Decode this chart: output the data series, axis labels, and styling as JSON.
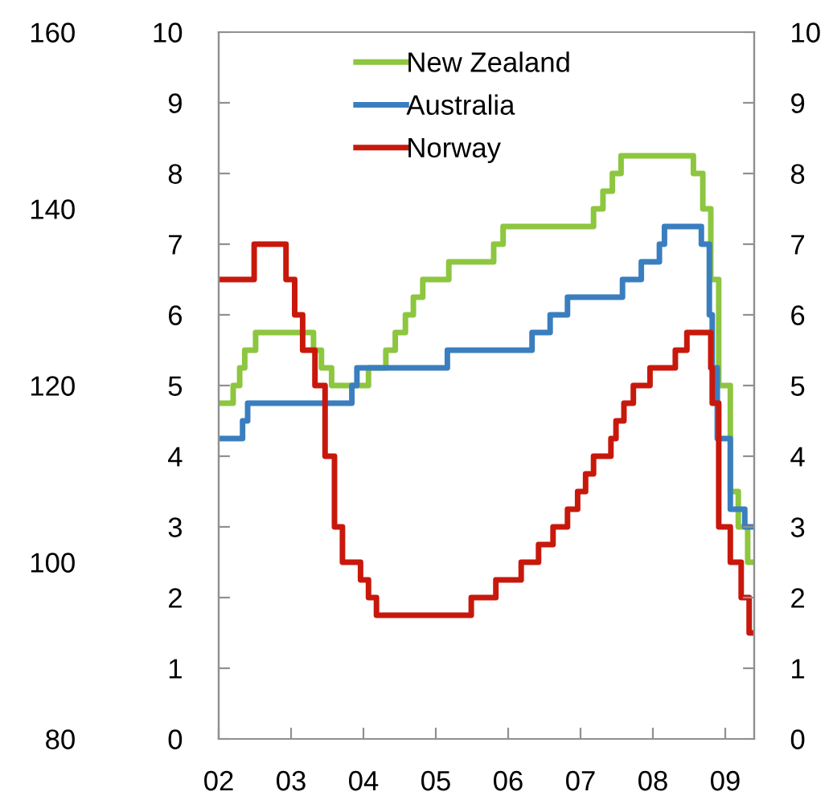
{
  "chart_data": {
    "type": "step",
    "xlim": [
      2002,
      2009.4
    ],
    "xticks": [
      {
        "value": 2002,
        "label": "02"
      },
      {
        "value": 2003,
        "label": "03"
      },
      {
        "value": 2004,
        "label": "04"
      },
      {
        "value": 2005,
        "label": "05"
      },
      {
        "value": 2006,
        "label": "06"
      },
      {
        "value": 2007,
        "label": "07"
      },
      {
        "value": 2008,
        "label": "08"
      },
      {
        "value": 2009,
        "label": "09"
      }
    ],
    "ylim": [
      0,
      10
    ],
    "yticks": [
      0,
      1,
      2,
      3,
      4,
      5,
      6,
      7,
      8,
      9,
      10
    ],
    "y2lim": [
      0,
      10
    ],
    "y2ticks": [
      0,
      1,
      2,
      3,
      4,
      5,
      6,
      7,
      8,
      9,
      10
    ],
    "y3lim": [
      80,
      160
    ],
    "y3ticks": [
      80,
      100,
      120,
      140,
      160
    ],
    "grid": false,
    "legend": "top left",
    "line_style": "solid",
    "marker": "none",
    "series": [
      {
        "name": "New Zealand",
        "color": "#8dc63f",
        "x": [
          2002,
          2002.2,
          2002.29,
          2002.36,
          2002.51,
          2003.31,
          2003.42,
          2003.56,
          2004.07,
          2004.31,
          2004.44,
          2004.58,
          2004.69,
          2004.82,
          2005.18,
          2005.8,
          2005.93,
          2007.18,
          2007.31,
          2007.44,
          2007.56,
          2008.56,
          2008.69,
          2008.8,
          2008.91,
          2009.07,
          2009.18,
          2009.31,
          2009.35
        ],
        "values": [
          4.75,
          5.0,
          5.25,
          5.5,
          5.75,
          5.5,
          5.25,
          5.0,
          5.25,
          5.5,
          5.75,
          6.0,
          6.25,
          6.5,
          6.75,
          7.0,
          7.25,
          7.5,
          7.75,
          8.0,
          8.25,
          8.0,
          7.5,
          6.5,
          5.0,
          3.5,
          3.0,
          2.5,
          2.5
        ]
      },
      {
        "name": "Australia",
        "color": "#3a7ebf",
        "x": [
          2002,
          2002.33,
          2002.4,
          2003.84,
          2003.91,
          2005.16,
          2006.33,
          2006.58,
          2006.82,
          2007.58,
          2007.84,
          2008.09,
          2008.16,
          2008.67,
          2008.78,
          2008.82,
          2008.89,
          2009.07,
          2009.27,
          2009.4
        ],
        "values": [
          4.25,
          4.5,
          4.75,
          5.0,
          5.25,
          5.5,
          5.75,
          6.0,
          6.25,
          6.5,
          6.75,
          7.0,
          7.25,
          7.0,
          6.0,
          5.25,
          4.25,
          3.25,
          3.0,
          3.0
        ]
      },
      {
        "name": "Norway",
        "color": "#c8180c",
        "x": [
          2002,
          2002.49,
          2002.93,
          2003.05,
          2003.16,
          2003.33,
          2003.47,
          2003.6,
          2003.71,
          2003.96,
          2004.07,
          2004.18,
          2005.49,
          2005.83,
          2006.18,
          2006.42,
          2006.62,
          2006.82,
          2006.96,
          2007.07,
          2007.18,
          2007.42,
          2007.49,
          2007.6,
          2007.73,
          2007.96,
          2008.31,
          2008.47,
          2008.8,
          2008.82,
          2008.91,
          2009.07,
          2009.22,
          2009.33,
          2009.35
        ],
        "values": [
          6.5,
          7.0,
          6.5,
          6.0,
          5.5,
          5.0,
          4.0,
          3.0,
          2.5,
          2.25,
          2.0,
          1.75,
          2.0,
          2.25,
          2.5,
          2.75,
          3.0,
          3.25,
          3.5,
          3.75,
          4.0,
          4.25,
          4.5,
          4.75,
          5.0,
          5.25,
          5.5,
          5.75,
          5.25,
          4.75,
          3.0,
          2.5,
          2.0,
          1.5,
          1.5
        ]
      }
    ]
  }
}
